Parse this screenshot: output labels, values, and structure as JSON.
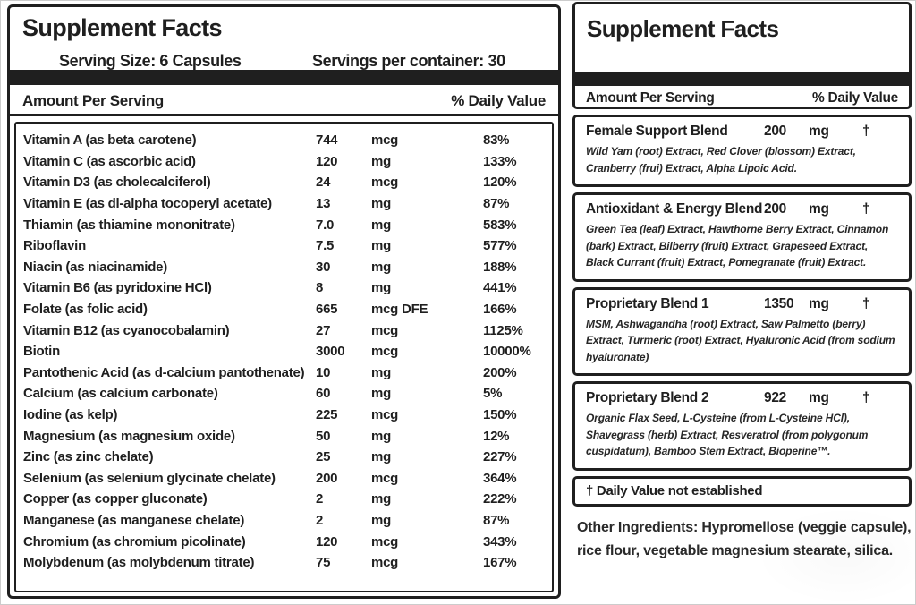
{
  "colors": {
    "ink": "#1f1f1f",
    "background": "#ffffff"
  },
  "left_panel": {
    "title": "Supplement Facts",
    "serving_size": "Serving Size: 6 Capsules",
    "servings_per_container": "Servings per container: 30",
    "column_headers": {
      "amount": "Amount Per Serving",
      "daily_value": "% Daily Value"
    },
    "rows": [
      {
        "name": "Vitamin A (as beta carotene)",
        "amount": "744",
        "unit": "mcg",
        "dv": "83%"
      },
      {
        "name": "Vitamin C (as ascorbic acid)",
        "amount": "120",
        "unit": "mg",
        "dv": "133%"
      },
      {
        "name": "Vitamin D3 (as cholecalciferol)",
        "amount": "24",
        "unit": "mcg",
        "dv": "120%"
      },
      {
        "name": "Vitamin E (as dl-alpha tocoperyl acetate)",
        "amount": "13",
        "unit": "mg",
        "dv": "87%"
      },
      {
        "name": "Thiamin (as thiamine mononitrate)",
        "amount": "7.0",
        "unit": "mg",
        "dv": "583%"
      },
      {
        "name": "Riboflavin",
        "amount": "7.5",
        "unit": "mg",
        "dv": "577%"
      },
      {
        "name": "Niacin (as niacinamide)",
        "amount": "30",
        "unit": "mg",
        "dv": "188%"
      },
      {
        "name": "Vitamin B6 (as pyridoxine HCl)",
        "amount": "8",
        "unit": "mg",
        "dv": "441%"
      },
      {
        "name": "Folate (as folic acid)",
        "amount": "665",
        "unit": "mcg DFE",
        "dv": "166%"
      },
      {
        "name": "Vitamin B12 (as cyanocobalamin)",
        "amount": "27",
        "unit": "mcg",
        "dv": "1125%"
      },
      {
        "name": "Biotin",
        "amount": "3000",
        "unit": "mcg",
        "dv": "10000%"
      },
      {
        "name": "Pantothenic Acid (as d-calcium pantothenate)",
        "amount": "10",
        "unit": "mg",
        "dv": "200%"
      },
      {
        "name": "Calcium (as calcium carbonate)",
        "amount": "60",
        "unit": "mg",
        "dv": "5%"
      },
      {
        "name": "Iodine (as kelp)",
        "amount": "225",
        "unit": "mcg",
        "dv": "150%"
      },
      {
        "name": "Magnesium (as magnesium oxide)",
        "amount": "50",
        "unit": "mg",
        "dv": "12%"
      },
      {
        "name": "Zinc (as zinc chelate)",
        "amount": "25",
        "unit": "mg",
        "dv": "227%"
      },
      {
        "name": "Selenium (as selenium glycinate chelate)",
        "amount": "200",
        "unit": "mcg",
        "dv": "364%"
      },
      {
        "name": "Copper (as copper gluconate)",
        "amount": "2",
        "unit": "mg",
        "dv": "222%"
      },
      {
        "name": "Manganese (as manganese chelate)",
        "amount": "2",
        "unit": "mg",
        "dv": "87%"
      },
      {
        "name": "Chromium (as chromium picolinate)",
        "amount": "120",
        "unit": "mcg",
        "dv": "343%"
      },
      {
        "name": "Molybdenum (as molybdenum titrate)",
        "amount": "75",
        "unit": "mcg",
        "dv": "167%"
      }
    ]
  },
  "right_panel": {
    "title": "Supplement Facts",
    "column_headers": {
      "amount": "Amount Per Serving",
      "daily_value": "% Daily Value"
    },
    "blends": [
      {
        "name": "Female Support Blend",
        "amount": "200",
        "unit": "mg",
        "dv": "†",
        "ingredients": "Wild Yam (root) Extract, Red Clover (blossom) Extract, Cranberry (frui) Extract, Alpha Lipoic Acid."
      },
      {
        "name": "Antioxidant & Energy Blend",
        "amount": "200",
        "unit": "mg",
        "dv": "†",
        "ingredients": "Green Tea (leaf) Extract, Hawthorne Berry Extract, Cinnamon (bark) Extract, Bilberry (fruit) Extract, Grapeseed Extract, Black Currant (fruit) Extract, Pomegranate (fruit) Extract."
      },
      {
        "name": "Proprietary Blend 1",
        "amount": "1350",
        "unit": "mg",
        "dv": "†",
        "ingredients": "MSM, Ashwagandha (root) Extract, Saw Palmetto (berry) Extract, Turmeric (root) Extract, Hyaluronic Acid (from sodium hyaluronate)"
      },
      {
        "name": "Proprietary Blend 2",
        "amount": "922",
        "unit": "mg",
        "dv": "†",
        "ingredients": "Organic Flax Seed, L-Cysteine (from L-Cysteine HCl), Shavegrass (herb) Extract, Resveratrol (from polygonum cuspidatum), Bamboo Stem Extract, Bioperine™."
      }
    ],
    "footnote": "† Daily Value not established",
    "other_ingredients_lines": [
      "Other Ingredients: Hypromellose (veggie capsule),",
      "rice flour, vegetable magnesium stearate, silica."
    ]
  }
}
